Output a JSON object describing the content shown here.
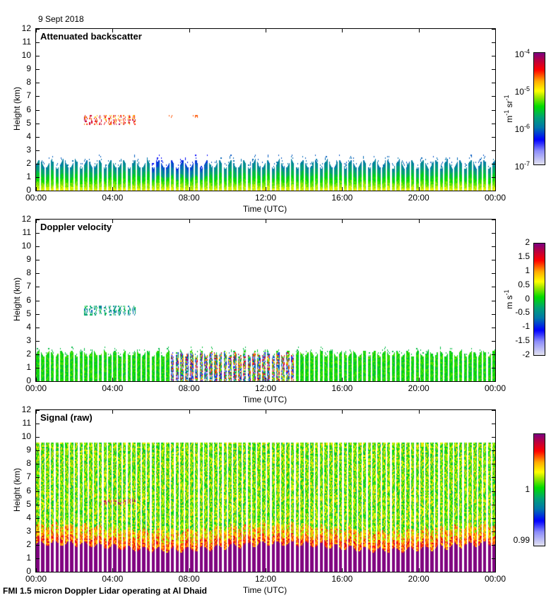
{
  "header": {
    "date": "9 Sept 2018"
  },
  "footer": {
    "caption": "FMI 1.5 micron Doppler Lidar operating at Al Dhaid"
  },
  "colors": {
    "purple": "#800080",
    "red": "#ff0000",
    "orange": "#ff8c00",
    "yellow": "#ffff00",
    "green": "#00dd00",
    "teal": "#009090",
    "blue": "#0000ff",
    "lavender": "#e0e0f0"
  },
  "chart_data": [
    {
      "type": "heatmap",
      "title": "Attenuated backscatter",
      "xlabel": "Time (UTC)",
      "ylabel": "Height (km)",
      "xticks": [
        "00:00",
        "04:00",
        "08:00",
        "12:00",
        "16:00",
        "20:00",
        "00:00"
      ],
      "yticks": [
        "0",
        "1",
        "2",
        "3",
        "4",
        "5",
        "6",
        "7",
        "8",
        "9",
        "10",
        "11",
        "12"
      ],
      "ylim": [
        0,
        12
      ],
      "xlim_hours": [
        0,
        24
      ],
      "colorbar": {
        "label": "m-1 sr-1",
        "label_main": "m",
        "sup1": "-1",
        "label_sr": " sr",
        "sup2": "-1",
        "scale": "log",
        "range": [
          1e-07,
          0.0001
        ],
        "ticks": [
          {
            "base": "10",
            "exp": "-4"
          },
          {
            "base": "10",
            "exp": "-5"
          },
          {
            "base": "10",
            "exp": "-6"
          },
          {
            "base": "10",
            "exp": "-7"
          }
        ]
      },
      "features": {
        "boundary_layer_top_km": 2.2,
        "cloud_layer_km": [
          5.0,
          5.6
        ],
        "cloud_time_hours": [
          2.5,
          8.5
        ]
      }
    },
    {
      "type": "heatmap",
      "title": "Doppler velocity",
      "xlabel": "Time (UTC)",
      "ylabel": "Height (km)",
      "xticks": [
        "00:00",
        "04:00",
        "08:00",
        "12:00",
        "16:00",
        "20:00",
        "00:00"
      ],
      "yticks": [
        "0",
        "1",
        "2",
        "3",
        "4",
        "5",
        "6",
        "7",
        "8",
        "9",
        "10",
        "11",
        "12"
      ],
      "ylim": [
        0,
        12
      ],
      "xlim_hours": [
        0,
        24
      ],
      "colorbar": {
        "label_main": "m",
        "label_sr": " s",
        "sup2": "-1",
        "scale": "linear",
        "range": [
          -2,
          2
        ],
        "ticks": [
          "2",
          "1.5",
          "1",
          "0.5",
          "0",
          "-0.5",
          "-1",
          "-1.5",
          "-2"
        ]
      },
      "features": {
        "boundary_layer_top_km": 2.2,
        "convective_period_hours": [
          7,
          13.5
        ]
      }
    },
    {
      "type": "heatmap",
      "title": "Signal (raw)",
      "xlabel": "Time (UTC)",
      "ylabel": "Height (km)",
      "xticks": [
        "00:00",
        "04:00",
        "08:00",
        "12:00",
        "16:00",
        "20:00",
        "00:00"
      ],
      "yticks": [
        "0",
        "1",
        "2",
        "3",
        "4",
        "5",
        "6",
        "7",
        "8",
        "9",
        "10",
        "11",
        "12"
      ],
      "ylim": [
        0,
        12
      ],
      "xlim_hours": [
        0,
        24
      ],
      "colorbar": {
        "scale": "linear",
        "range": [
          0.99,
          1.01
        ],
        "ticks": [
          "1",
          "0.99"
        ]
      },
      "features": {
        "max_range_km": 9.6,
        "saturated_below_km": 2.0
      }
    }
  ]
}
